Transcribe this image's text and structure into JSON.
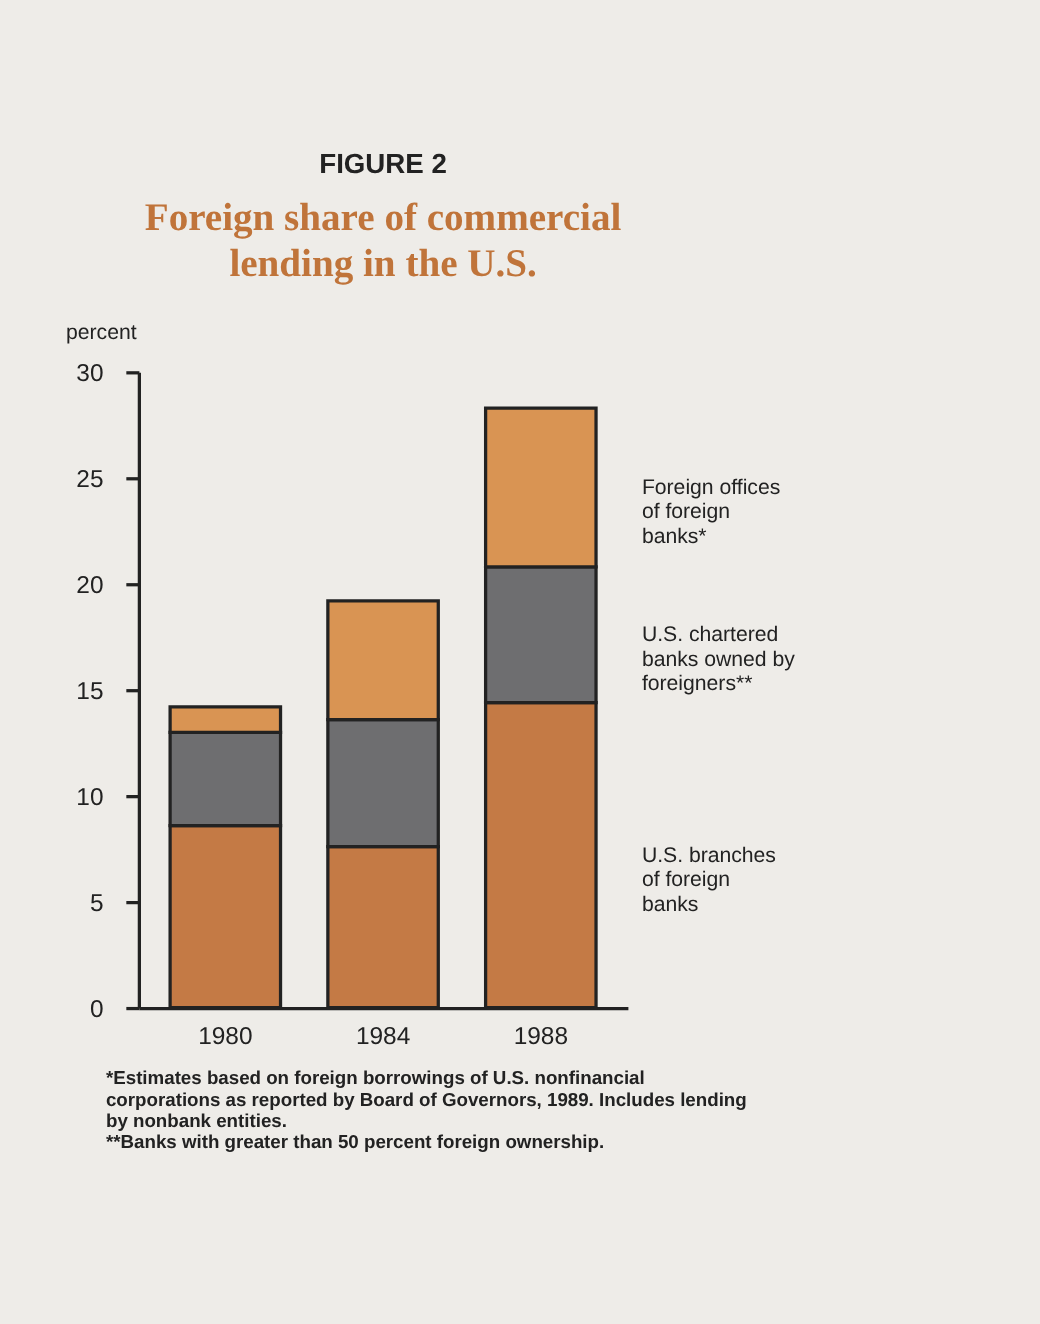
{
  "chart_data": {
    "type": "bar",
    "stacked": true,
    "title": "Foreign share of commercial lending in the U.S.",
    "ylabel": "percent",
    "categories": [
      "1980",
      "1984",
      "1988"
    ],
    "series": [
      {
        "name": "U.S. branches of foreign banks",
        "color": "#c47a45",
        "values": [
          8.6,
          7.6,
          14.4
        ]
      },
      {
        "name": "U.S. chartered banks owned by foreigners**",
        "color": "#6e6e70",
        "values": [
          4.4,
          6.0,
          6.4
        ]
      },
      {
        "name": "Foreign offices of foreign banks*",
        "color": "#d99453",
        "values": [
          1.2,
          5.6,
          7.5
        ]
      }
    ],
    "ylim": [
      0,
      30
    ],
    "yticks": [
      0,
      5,
      10,
      15,
      20,
      25,
      30
    ],
    "grid": false,
    "legend": "right",
    "annotations": [
      "FIGURE 2",
      "*Estimates based on foreign borrowings of U.S. nonfinancial corporations as reported by Board of Governors, 1989. Includes lending by nonbank entities.",
      "**Banks with greater than 50 percent foreign ownership."
    ]
  }
}
